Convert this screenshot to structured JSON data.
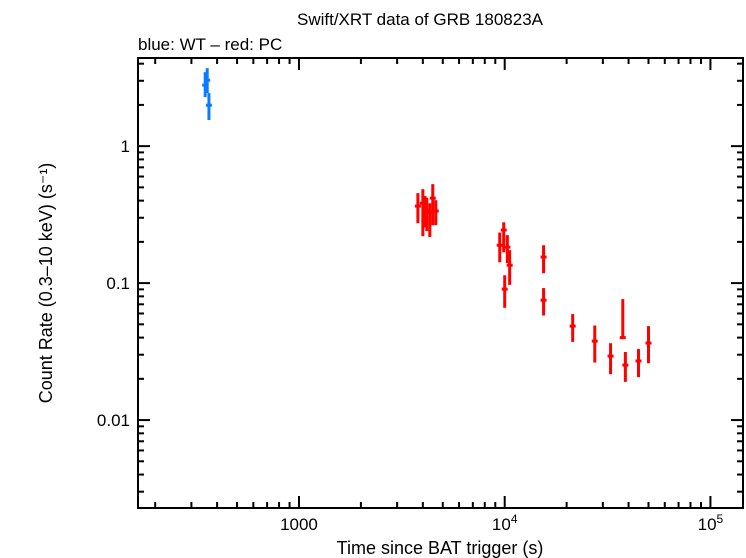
{
  "chart_data": {
    "type": "scatter",
    "title": "Swift/XRT data of GRB 180823A",
    "subtitle": "blue: WT – red: PC",
    "xlabel": "Time since BAT trigger (s)",
    "ylabel": "Count Rate (0.3–10 keV) (s⁻¹)",
    "xscale": "log",
    "yscale": "log",
    "xlim": [
      165,
      144000
    ],
    "ylim": [
      0.00228,
      4.4
    ],
    "grid": false,
    "x_ticks": [
      {
        "value": 1000,
        "label": "1000",
        "sup": ""
      },
      {
        "value": 10000,
        "label": "10",
        "sup": "4"
      },
      {
        "value": 100000,
        "label": "10",
        "sup": "5"
      }
    ],
    "y_ticks": [
      {
        "value": 1,
        "label": "1"
      },
      {
        "value": 0.1,
        "label": "0.1"
      },
      {
        "value": 0.01,
        "label": "0.01"
      }
    ],
    "series": [
      {
        "mode": "WT",
        "color": "#0a7cff",
        "points": [
          [
            350,
            2.79,
            2.28,
            3.47
          ],
          [
            358,
            3.03,
            2.44,
            3.71
          ],
          [
            365,
            1.99,
            1.55,
            2.44
          ]
        ]
      },
      {
        "mode": "PC",
        "color": "#ff0000",
        "points": [
          [
            3784,
            0.365,
            0.274,
            0.454
          ],
          [
            4000,
            0.383,
            0.22,
            0.485
          ],
          [
            4100,
            0.345,
            0.256,
            0.432
          ],
          [
            4180,
            0.341,
            0.24,
            0.42
          ],
          [
            4325,
            0.33,
            0.217,
            0.383
          ],
          [
            4470,
            0.417,
            0.265,
            0.528
          ],
          [
            4625,
            0.336,
            0.265,
            0.403
          ],
          [
            9460,
            0.189,
            0.142,
            0.234
          ],
          [
            9890,
            0.244,
            0.168,
            0.278
          ],
          [
            10000,
            0.0904,
            0.066,
            0.114
          ],
          [
            10300,
            0.183,
            0.14,
            0.224
          ],
          [
            10570,
            0.135,
            0.097,
            0.174
          ],
          [
            15450,
            0.155,
            0.118,
            0.189
          ],
          [
            15450,
            0.075,
            0.058,
            0.092
          ],
          [
            21400,
            0.0485,
            0.0372,
            0.0594
          ],
          [
            27400,
            0.0377,
            0.0263,
            0.049
          ],
          [
            32700,
            0.0293,
            0.0216,
            0.0364
          ],
          [
            37500,
            0.04,
            0.039,
            0.0764
          ],
          [
            38600,
            0.0252,
            0.019,
            0.0314
          ],
          [
            44700,
            0.027,
            0.0206,
            0.033
          ],
          [
            50000,
            0.0365,
            0.026,
            0.0485
          ]
        ]
      }
    ]
  }
}
